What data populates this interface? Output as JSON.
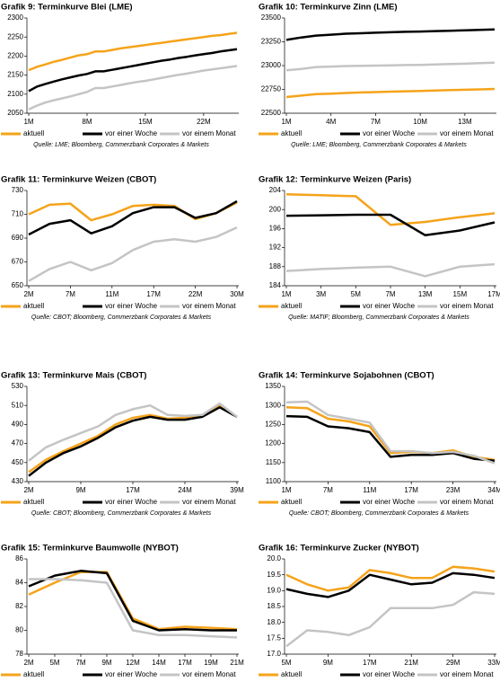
{
  "chart_data": [
    {
      "type": "line",
      "title": "Grafik 9: Terminkurve Blei (LME)",
      "source": "Quelle: LME; Bloomberg, Commerzbank Corporates & Markets",
      "categories": [
        "1M",
        null,
        null,
        null,
        null,
        null,
        null,
        "8M",
        null,
        null,
        null,
        null,
        null,
        null,
        "15M",
        null,
        null,
        null,
        null,
        null,
        null,
        "22M",
        null,
        null,
        null,
        null
      ],
      "ylim": [
        2050,
        2300
      ],
      "yticks": [
        2050,
        2100,
        2150,
        2200,
        2250,
        2300
      ],
      "series": [
        {
          "name": "aktuell",
          "color": "#f5a31a",
          "values": [
            2163,
            2172,
            2178,
            2185,
            2190,
            2196,
            2202,
            2205,
            2212,
            2212,
            2216,
            2220,
            2223,
            2226,
            2229,
            2232,
            2235,
            2238,
            2241,
            2244,
            2247,
            2250,
            2253,
            2255,
            2258,
            2261
          ]
        },
        {
          "name": "vor einer Woche",
          "color": "#000000",
          "values": [
            2108,
            2120,
            2127,
            2133,
            2139,
            2144,
            2149,
            2153,
            2160,
            2160,
            2164,
            2168,
            2172,
            2176,
            2180,
            2184,
            2188,
            2191,
            2195,
            2198,
            2202,
            2205,
            2208,
            2212,
            2215,
            2218
          ]
        },
        {
          "name": "vor einem Monat",
          "color": "#c4c4c4",
          "values": [
            2060,
            2070,
            2078,
            2084,
            2089,
            2094,
            2100,
            2106,
            2116,
            2116,
            2120,
            2124,
            2128,
            2132,
            2135,
            2139,
            2143,
            2147,
            2151,
            2154,
            2158,
            2162,
            2165,
            2168,
            2171,
            2174
          ]
        }
      ]
    },
    {
      "type": "line",
      "title": "Grafik 10: Terminkurve Zinn (LME)",
      "source": "Quelle: LME; Bloomberg, Commerzbank Corporates & Markets",
      "categories": [
        "1M",
        null,
        null,
        "4M",
        null,
        null,
        "7M",
        null,
        null,
        "10M",
        null,
        null,
        "13M",
        null,
        null
      ],
      "ylim": [
        22500,
        23500
      ],
      "yticks": [
        22500,
        22750,
        23000,
        23250,
        23500
      ],
      "series": [
        {
          "name": "aktuell",
          "color": "#f5a31a",
          "values": [
            22670,
            22685,
            22700,
            22705,
            22712,
            22718,
            22722,
            22726,
            22730,
            22734,
            22738,
            22742,
            22746,
            22750,
            22755
          ]
        },
        {
          "name": "vor einer Woche",
          "color": "#000000",
          "values": [
            23270,
            23295,
            23315,
            23325,
            23335,
            23340,
            23345,
            23350,
            23355,
            23358,
            23362,
            23366,
            23370,
            23375,
            23380
          ]
        },
        {
          "name": "vor einem Monat",
          "color": "#c4c4c4",
          "values": [
            22950,
            22965,
            22985,
            22990,
            22995,
            22998,
            23000,
            23003,
            23006,
            23008,
            23012,
            23016,
            23020,
            23025,
            23030
          ]
        }
      ]
    },
    {
      "type": "line",
      "title": "Grafik 11: Terminkurve Weizen (CBOT)",
      "source": "Quelle: CBOT; Bloomberg, Commerzbank Corporates & Markets",
      "categories": [
        "2M",
        null,
        "7M",
        null,
        "11M",
        null,
        "17M",
        null,
        "22M",
        null,
        "30M"
      ],
      "ylim": [
        650,
        730
      ],
      "yticks": [
        650,
        670,
        690,
        710,
        730
      ],
      "series": [
        {
          "name": "aktuell",
          "color": "#f5a31a",
          "values": [
            710,
            718,
            719,
            705,
            710,
            717,
            718,
            717,
            706,
            711,
            720
          ]
        },
        {
          "name": "vor einer Woche",
          "color": "#000000",
          "values": [
            693,
            702,
            705,
            694,
            700,
            711,
            716,
            716,
            707,
            711,
            721
          ]
        },
        {
          "name": "vor einem Monat",
          "color": "#c4c4c4",
          "values": [
            654,
            664,
            670,
            663,
            669,
            680,
            687,
            689,
            687,
            691,
            699
          ]
        }
      ]
    },
    {
      "type": "line",
      "title": "Grafik 12: Terminkurve Weizen (Paris)",
      "source": "Quelle: MATIF; Bloomberg, Commerzbank Corporates & Markets",
      "categories": [
        "1M",
        "3M",
        "5M",
        "7M",
        "13M",
        "15M",
        "17M"
      ],
      "ylim": [
        184,
        204
      ],
      "yticks": [
        184,
        188,
        192,
        196,
        200,
        204
      ],
      "series": [
        {
          "name": "aktuell",
          "color": "#f5a31a",
          "values": [
            203.2,
            203.0,
            202.8,
            196.8,
            197.4,
            198.4,
            199.2
          ]
        },
        {
          "name": "vor einer Woche",
          "color": "#000000",
          "values": [
            198.7,
            198.8,
            198.9,
            198.9,
            194.6,
            195.6,
            197.3
          ]
        },
        {
          "name": "vor einem Monat",
          "color": "#c4c4c4",
          "values": [
            187.1,
            187.5,
            187.8,
            188.0,
            186.0,
            188.0,
            188.5
          ]
        }
      ]
    },
    {
      "type": "line",
      "title": "Grafik 13: Terminkurve Mais (CBOT)",
      "source": "Quelle: CBOT; Bloomberg, Commerzbank Corporates & Markets",
      "categories": [
        "2M",
        null,
        null,
        "9M",
        null,
        null,
        "17M",
        null,
        null,
        "24M",
        null,
        null,
        "39M"
      ],
      "ylim": [
        430,
        530
      ],
      "yticks": [
        430,
        450,
        470,
        490,
        510,
        530
      ],
      "series": [
        {
          "name": "aktuell",
          "color": "#f5a31a",
          "values": [
            440,
            453,
            462,
            470,
            478,
            490,
            497,
            500,
            496,
            497,
            500,
            510,
            498
          ]
        },
        {
          "name": "vor einer Woche",
          "color": "#000000",
          "values": [
            436,
            450,
            460,
            467,
            476,
            487,
            494,
            498,
            495,
            495,
            498,
            508,
            498
          ]
        },
        {
          "name": "vor einem Monat",
          "color": "#c4c4c4",
          "values": [
            452,
            466,
            474,
            481,
            488,
            500,
            506,
            510,
            500,
            499,
            500,
            512,
            498
          ]
        }
      ]
    },
    {
      "type": "line",
      "title": "Grafik 14: Terminkurve Sojabohnen (CBOT)",
      "source": "Quelle: CBOT; Bloomberg, Commerzbank Corporates & Markets",
      "categories": [
        "1M",
        null,
        "7M",
        null,
        "11M",
        null,
        "17M",
        null,
        "23M",
        null,
        "34M"
      ],
      "ylim": [
        1100,
        1350
      ],
      "yticks": [
        1100,
        1150,
        1200,
        1250,
        1300,
        1350
      ],
      "series": [
        {
          "name": "aktuell",
          "color": "#f5a31a",
          "values": [
            1295,
            1293,
            1265,
            1258,
            1245,
            1175,
            1178,
            1175,
            1182,
            1165,
            1157
          ]
        },
        {
          "name": "vor einer Woche",
          "color": "#000000",
          "values": [
            1272,
            1270,
            1245,
            1240,
            1230,
            1165,
            1170,
            1170,
            1175,
            1160,
            1155
          ]
        },
        {
          "name": "vor einem Monat",
          "color": "#c4c4c4",
          "values": [
            1308,
            1310,
            1275,
            1265,
            1255,
            1180,
            1180,
            1175,
            1178,
            1168,
            1148
          ]
        }
      ]
    },
    {
      "type": "line",
      "title": "Grafik 15: Terminkurve Baumwolle (NYBOT)",
      "source": "Quelle: NYBOT; Bloomberg, Commerzbank Corporates & Markets",
      "categories": [
        "2M",
        "5M",
        "7M",
        "9M",
        "12M",
        "14M",
        "17M",
        "19M",
        "21M"
      ],
      "ylim": [
        78,
        86
      ],
      "yticks": [
        78,
        80,
        82,
        84,
        86
      ],
      "series": [
        {
          "name": "aktuell",
          "color": "#f5a31a",
          "values": [
            83.0,
            84.0,
            84.9,
            84.9,
            81.0,
            80.1,
            80.3,
            80.2,
            80.1
          ]
        },
        {
          "name": "vor einer Woche",
          "color": "#000000",
          "values": [
            83.7,
            84.6,
            85.0,
            84.8,
            80.8,
            80.0,
            80.1,
            80.0,
            80.0
          ]
        },
        {
          "name": "vor einem Monat",
          "color": "#c4c4c4",
          "values": [
            84.3,
            84.3,
            84.2,
            84.0,
            80.0,
            79.6,
            79.6,
            79.5,
            79.4
          ]
        }
      ]
    },
    {
      "type": "line",
      "title": "Grafik 16: Terminkurve Zucker (NYBOT)",
      "source": "Quelle: NYBOT; Bloomberg, Commerzbank Corporates & Markets",
      "categories": [
        "5M",
        null,
        "9M",
        null,
        "17M",
        null,
        "21M",
        null,
        "29M",
        null,
        "33M"
      ],
      "ylim": [
        17,
        20
      ],
      "yticks": [
        {
          "value": 17,
          "label": "17.0"
        },
        {
          "value": 17.5,
          "label": "17.5"
        },
        {
          "value": 18,
          "label": "18.0"
        },
        {
          "value": 18.5,
          "label": "18.5"
        },
        {
          "value": 19,
          "label": "19.0"
        },
        {
          "value": 19.5,
          "label": "19.5"
        },
        {
          "value": 20,
          "label": "20.0"
        }
      ],
      "series": [
        {
          "name": "aktuell",
          "color": "#f5a31a",
          "values": [
            19.5,
            19.2,
            19.0,
            19.1,
            19.65,
            19.55,
            19.4,
            19.4,
            19.75,
            19.7,
            19.6
          ]
        },
        {
          "name": "vor einer Woche",
          "color": "#000000",
          "values": [
            19.05,
            18.9,
            18.8,
            19.0,
            19.5,
            19.35,
            19.2,
            19.25,
            19.55,
            19.5,
            19.4
          ]
        },
        {
          "name": "vor einem Monat",
          "color": "#c4c4c4",
          "values": [
            17.25,
            17.75,
            17.7,
            17.6,
            17.85,
            18.45,
            18.45,
            18.45,
            18.55,
            18.95,
            18.9
          ]
        }
      ]
    }
  ]
}
